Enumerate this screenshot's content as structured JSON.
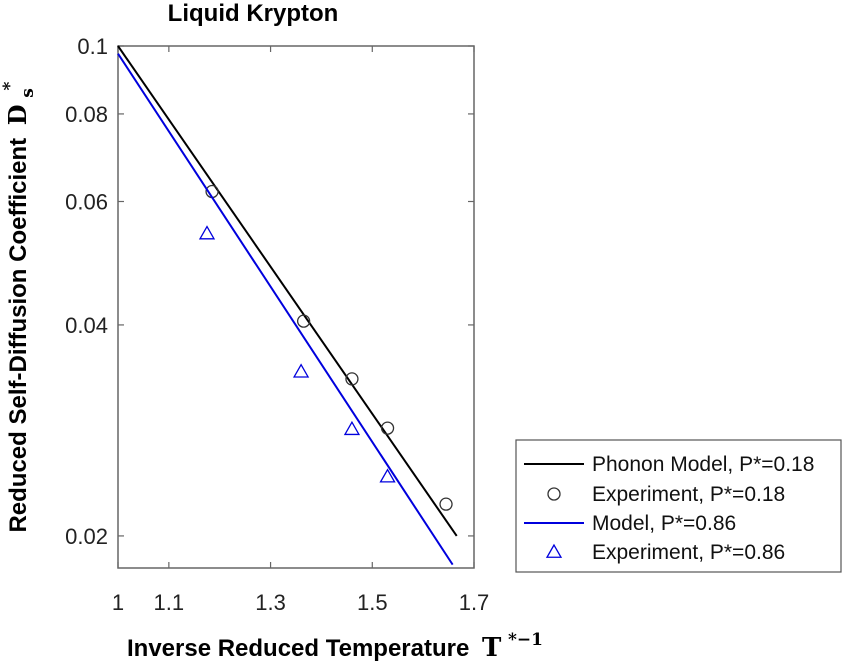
{
  "chart_data": {
    "type": "line",
    "title": "Liquid Krypton",
    "xlabel": "Inverse Reduced Temperature",
    "xlabel_symbol": "T",
    "xlabel_superscript": "*−1",
    "ylabel": "Reduced Self-Diffusion Coefficient",
    "ylabel_symbol": "D",
    "ylabel_subscript": "s",
    "ylabel_superscript": "*",
    "xlim": [
      1,
      1.7
    ],
    "ylim": [
      0.018,
      0.1
    ],
    "yscale": "log",
    "xticks": [
      1,
      1.1,
      1.3,
      1.5,
      1.7
    ],
    "xtick_labels": [
      "1",
      "1.1",
      "1.3",
      "1.5",
      "1.7"
    ],
    "yticks": [
      0.02,
      0.04,
      0.06,
      0.08,
      0.1
    ],
    "ytick_labels": [
      "0.02",
      "0.04",
      "0.06",
      "0.08",
      "0.1"
    ],
    "legend_position": "right",
    "series": [
      {
        "name": "Phonon Model, P*=0.18",
        "kind": "line",
        "color": "#000000",
        "x": [
          1.0,
          1.666
        ],
        "y": [
          0.1,
          0.02
        ]
      },
      {
        "name": "Experiment, P*=0.18",
        "kind": "marker",
        "marker": "circle",
        "color": "#333333",
        "x": [
          1.185,
          1.365,
          1.46,
          1.53,
          1.645
        ],
        "y": [
          0.062,
          0.0405,
          0.0335,
          0.0285,
          0.0222
        ]
      },
      {
        "name": "Model, P*=0.86",
        "kind": "line",
        "color": "#0000dd",
        "x": [
          1.0,
          1.658
        ],
        "y": [
          0.0975,
          0.0182
        ]
      },
      {
        "name": "Experiment, P*=0.86",
        "kind": "marker",
        "marker": "triangle",
        "color": "#0000dd",
        "x": [
          1.175,
          1.36,
          1.46,
          1.53
        ],
        "y": [
          0.054,
          0.0343,
          0.0284,
          0.0243
        ]
      }
    ]
  }
}
